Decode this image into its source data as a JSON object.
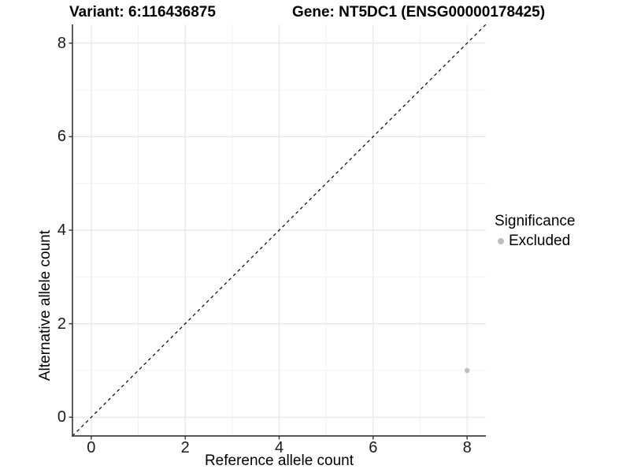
{
  "chart_data": {
    "type": "scatter",
    "titles": {
      "left": "Variant: 6:116436875",
      "right": "Gene: NT5DC1 (ENSG00000178425)"
    },
    "xlabel": "Reference allele count",
    "ylabel": "Alternative allele count",
    "xlim": [
      -0.4,
      8.4
    ],
    "ylim": [
      -0.4,
      8.4
    ],
    "x_ticks": [
      0,
      2,
      4,
      6,
      8
    ],
    "y_ticks": [
      0,
      2,
      4,
      6,
      8
    ],
    "minor_grid_step": 1,
    "grid": true,
    "identity_line": {
      "slope": 1,
      "intercept": 0,
      "style": "dashed",
      "color": "#000000"
    },
    "series": [
      {
        "name": "Excluded",
        "color": "#bdbdbd",
        "points": [
          {
            "x": 8,
            "y": 1
          }
        ]
      }
    ],
    "legend": {
      "title": "Significance",
      "position": "right",
      "items": [
        {
          "label": "Excluded",
          "color": "#bdbdbd"
        }
      ]
    },
    "colors": {
      "grid_major": "#e7e7e7",
      "grid_minor": "#f0f0f0",
      "axis_line": "#404040",
      "tick_mark": "#333333",
      "point": "#bdbdbd"
    }
  }
}
